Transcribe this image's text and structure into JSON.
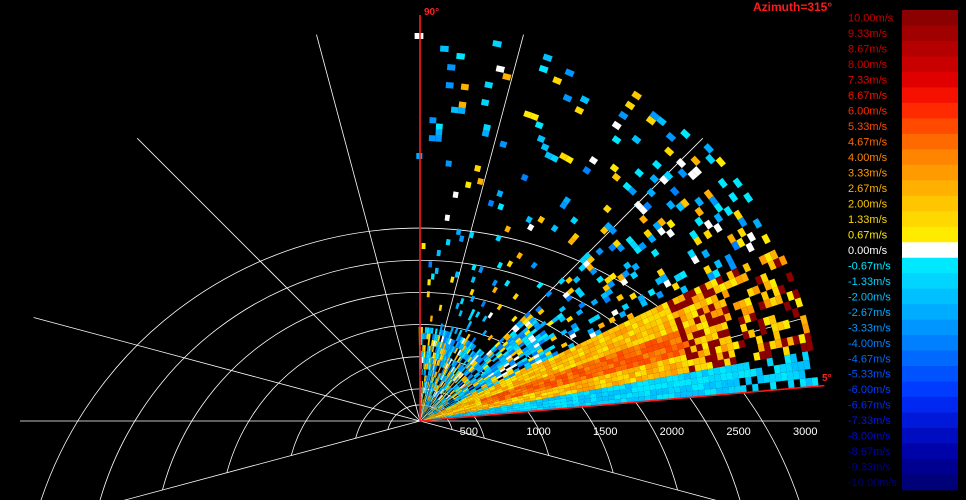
{
  "header": {
    "azimuth_label": "Azimuth=315°"
  },
  "plot": {
    "sector_start_label": "90°",
    "sector_end_label": "5°",
    "range_tick_labels": [
      "500",
      "1000",
      "1500",
      "2000",
      "2500",
      "3000"
    ],
    "range_ticks_m": [
      500,
      1000,
      1500,
      2000,
      2500,
      3000
    ],
    "sector_deg": [
      5,
      90
    ],
    "max_range_m": 3000
  },
  "legend": {
    "labels": [
      "10.00m/s",
      "9.33m/s",
      "8.67m/s",
      "8.00m/s",
      "7.33m/s",
      "6.67m/s",
      "6.00m/s",
      "5.33m/s",
      "4.67m/s",
      "4.00m/s",
      "3.33m/s",
      "2.67m/s",
      "2.00m/s",
      "1.33m/s",
      "0.67m/s",
      "0.00m/s",
      "-0.67m/s",
      "-1.33m/s",
      "-2.00m/s",
      "-2.67m/s",
      "-3.33m/s",
      "-4.00m/s",
      "-4.67m/s",
      "-5.33m/s",
      "-6.00m/s",
      "-6.67m/s",
      "-7.33m/s",
      "-8.00m/s",
      "-8.67m/s",
      "-9.33m/s",
      "-10.00m/s"
    ],
    "colors": [
      "#8b0000",
      "#a00000",
      "#b40000",
      "#c80000",
      "#e00000",
      "#f51000",
      "#ff2a00",
      "#ff4a00",
      "#ff6a00",
      "#ff8400",
      "#ff9a00",
      "#ffb000",
      "#ffc600",
      "#ffd800",
      "#ffeb00",
      "#ffffff",
      "#00e8ff",
      "#00d4ff",
      "#00c0ff",
      "#00acff",
      "#0096ff",
      "#0080ff",
      "#006aff",
      "#0052ff",
      "#003cff",
      "#0028f0",
      "#0018d8",
      "#000cc0",
      "#0004a8",
      "#000090",
      "#000078"
    ],
    "label_colors": [
      "#c80000",
      "#c80000",
      "#c80000",
      "#c80000",
      "#e00000",
      "#f51000",
      "#ff2a00",
      "#ff4a00",
      "#ff6a00",
      "#ff8400",
      "#ff9a00",
      "#ffb000",
      "#ffc600",
      "#ffd800",
      "#ffeb00",
      "#ffffff",
      "#00e8ff",
      "#00d4ff",
      "#00c0ff",
      "#00acff",
      "#0096ff",
      "#0080ff",
      "#006aff",
      "#0052ff",
      "#003cff",
      "#0028f0",
      "#0018d8",
      "#000cc0",
      "#0004a8",
      "#000090",
      "#000078"
    ]
  }
}
